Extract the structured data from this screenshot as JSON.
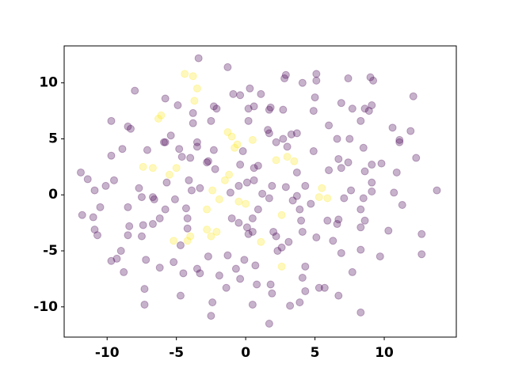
{
  "chart_data": {
    "type": "scatter",
    "xlim": [
      -13.1,
      15.2
    ],
    "ylim": [
      -12.7,
      13.3
    ],
    "xticks": [
      -10,
      -5,
      0,
      5,
      10
    ],
    "yticks": [
      -10,
      -5,
      0,
      5,
      10
    ],
    "grid": false,
    "alpha": 0.3,
    "series": [
      {
        "color": "#440154",
        "x": [
          -3.4,
          -1.3,
          5.1,
          2.9,
          2.8,
          7.4,
          9.0,
          9.2,
          4.1,
          5.1,
          0.3,
          -0.9,
          -0.4,
          -8.0,
          -5.8,
          1.1,
          5.0,
          12.1,
          -4.9,
          -2.3,
          -2.1,
          0.2,
          0.6,
          1.7,
          1.8,
          4.9,
          6.9,
          7.7,
          8.6,
          9.1,
          8.9,
          2.7,
          -9.7,
          -3.8,
          -3.8,
          -2.5,
          0.2,
          -8.5,
          -8.3,
          6.0,
          8.3,
          10.6,
          11.9,
          1.6,
          1.7,
          3.7,
          3.3,
          -5.4,
          -5.9,
          -5.8,
          -3.5,
          -3.5,
          -4.8,
          -7.1,
          -8.9,
          2.2,
          2.7,
          3.0,
          6.6,
          7.5,
          8.5,
          11.1,
          11.1,
          4.9,
          -9.7,
          -4.6,
          -2.3,
          -4.0,
          -2.7,
          -2.8,
          -0.2,
          6.7,
          6.9,
          7.4,
          9.1,
          9.8,
          12.3,
          0.6,
          0.9,
          -0.4,
          -2.2,
          3.7,
          6.0,
          8.6,
          10.9,
          -11.9,
          -11.4,
          -9.5,
          -5.7,
          -4.1,
          0.6,
          0.1,
          -0.5,
          1.9,
          2.9,
          4.3,
          9.1,
          -10.1,
          -10.9,
          -7.7,
          -3.9,
          -3.3,
          -1.1,
          7.6,
          9.1,
          10.7,
          13.8,
          -7.5,
          -6.7,
          -6.6,
          -5.1,
          1.2,
          1.7,
          3.7,
          3.4,
          4.7,
          7.1,
          8.5,
          -8.5,
          -10.5,
          -4.3,
          -5.8,
          3.9,
          11.3,
          8.3,
          0.9,
          -11.8,
          -11.0,
          -6.2,
          -4.2,
          -1.0,
          -0.5,
          0.5,
          4.0,
          5.9,
          6.7,
          6.6,
          8.6,
          -6.7,
          -7.4,
          -8.4,
          -10.9,
          -4.2,
          0.1,
          8.3,
          2.0,
          4.1,
          10.3,
          -10.7,
          -8.5,
          -7.5,
          0.2,
          0.5,
          2.2,
          5.1,
          12.7,
          -4.7,
          2.6,
          6.3,
          3.1,
          -9.0,
          2.3,
          6.9,
          8.3,
          9.7,
          -1.3,
          -2.7,
          12.7,
          -9.3,
          -9.7,
          -7.2,
          -5.2,
          -0.1,
          4.3,
          0.7,
          -0.7,
          -3.5,
          -3.3,
          -6.2,
          -8.8,
          -4.5,
          -1.9,
          7.7,
          4.1,
          -0.4,
          0.8,
          1.8,
          5.3,
          5.7,
          -7.3,
          -1.4,
          1.9,
          4.3,
          6.7,
          -4.7,
          3.9,
          -2.4,
          0.5,
          -7.3,
          3.2,
          8.3,
          -2.5,
          1.7
        ],
        "values": [
          12.2,
          11.4,
          10.8,
          10.7,
          10.4,
          10.4,
          10.5,
          10.2,
          10.0,
          10.2,
          9.5,
          9.0,
          8.9,
          9.3,
          8.6,
          9.0,
          8.7,
          8.8,
          8.0,
          7.9,
          7.7,
          7.7,
          7.9,
          7.6,
          7.8,
          7.5,
          8.2,
          7.7,
          7.7,
          8.0,
          7.5,
          7.6,
          6.6,
          7.3,
          6.4,
          6.6,
          6.6,
          6.1,
          5.9,
          6.2,
          6.6,
          6.0,
          5.7,
          5.8,
          5.5,
          5.5,
          5.4,
          5.3,
          4.7,
          4.7,
          4.7,
          4.3,
          4.1,
          4.0,
          4.1,
          4.7,
          5.0,
          4.3,
          5.0,
          5.0,
          4.2,
          4.9,
          4.7,
          3.9,
          3.5,
          3.4,
          4.0,
          3.3,
          3.0,
          2.9,
          3.9,
          3.2,
          2.4,
          2.9,
          2.7,
          2.8,
          3.3,
          2.4,
          2.6,
          2.7,
          2.3,
          2.0,
          2.2,
          2.1,
          2.0,
          2.0,
          1.4,
          1.3,
          1.1,
          1.3,
          1.3,
          1.1,
          0.8,
          0.8,
          0.7,
          0.8,
          1.1,
          0.8,
          0.4,
          0.6,
          0.4,
          0.6,
          0.2,
          0.4,
          0.3,
          0.2,
          0.4,
          -0.2,
          -0.2,
          -0.4,
          -0.4,
          0.1,
          -0.3,
          -0.1,
          -0.5,
          -0.8,
          -0.3,
          -0.3,
          -1.1,
          -1.1,
          -1.2,
          -1.3,
          -1.3,
          -0.9,
          -1.3,
          -1.3,
          -1.8,
          -2.0,
          -2.1,
          -2.1,
          -2.1,
          -2.5,
          -2.1,
          -2.3,
          -2.3,
          -2.2,
          -2.6,
          -2.3,
          -2.6,
          -2.7,
          -2.8,
          -3.1,
          -3.0,
          -2.9,
          -2.9,
          -3.3,
          -3.3,
          -3.2,
          -3.6,
          -3.6,
          -3.7,
          -3.5,
          -3.3,
          -3.7,
          -3.8,
          -3.5,
          -4.5,
          -4.7,
          -4.1,
          -4.2,
          -5.0,
          -5.0,
          -5.2,
          -4.9,
          -5.5,
          -5.4,
          -5.5,
          -5.3,
          -5.7,
          -5.9,
          -5.8,
          -6.0,
          -5.8,
          -6.4,
          -6.3,
          -6.6,
          -6.6,
          -7.0,
          -6.5,
          -6.9,
          -7.0,
          -7.2,
          -6.9,
          -7.4,
          -7.5,
          -8.0,
          -8.0,
          -8.3,
          -8.3,
          -8.4,
          -8.3,
          -8.8,
          -8.6,
          -9.0,
          -9.0,
          -9.6,
          -9.6,
          -9.8,
          -9.8,
          -9.9,
          -10.5,
          -10.8,
          -11.5
        ]
      },
      {
        "color": "#fde725",
        "x": [
          -4.4,
          -3.8,
          -3.5,
          -3.7,
          -6.1,
          -6.3,
          -1.3,
          -1.0,
          0.5,
          -0.8,
          -0.6,
          -7.4,
          -6.7,
          -5.5,
          -5.0,
          3.0,
          3.5,
          2.2,
          -1.2,
          -1.5,
          -2.4,
          -1.9,
          -0.5,
          0.0,
          5.5,
          5.3,
          5.9,
          -2.8,
          2.6,
          -2.8,
          -2.1,
          -2.5,
          -4.0,
          -4.2,
          -5.2,
          1.1,
          2.6
        ],
        "values": [
          10.8,
          10.6,
          9.5,
          8.4,
          7.1,
          6.8,
          5.6,
          5.2,
          4.9,
          4.2,
          4.5,
          2.5,
          2.4,
          1.8,
          2.4,
          3.4,
          3.0,
          3.1,
          1.8,
          1.3,
          0.4,
          -0.4,
          -0.6,
          -0.8,
          0.6,
          -0.2,
          -0.3,
          -1.3,
          -1.8,
          -3.1,
          -3.3,
          -3.7,
          -3.7,
          -4.1,
          -4.1,
          -4.2,
          -6.4
        ]
      }
    ]
  }
}
